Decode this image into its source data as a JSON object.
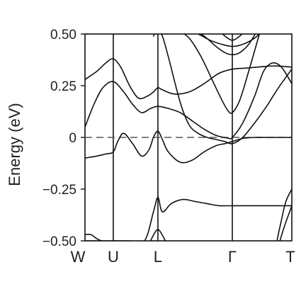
{
  "chart_data": {
    "type": "line",
    "title": "",
    "xlabel": "",
    "ylabel": "Energy (eV)",
    "ylim": [
      -0.5,
      0.5
    ],
    "yticks": [
      {
        "value": 0.5,
        "label": "0.50"
      },
      {
        "value": 0.25,
        "label": "0.25"
      },
      {
        "value": 0,
        "label": "0"
      },
      {
        "value": -0.25,
        "label": "−0.25"
      },
      {
        "value": -0.5,
        "label": "−0.50"
      }
    ],
    "xlim": [
      0,
      6.95
    ],
    "kpoints": [
      {
        "label": "W",
        "x": 0
      },
      {
        "label": "U",
        "x": 0.95
      },
      {
        "label": "L",
        "x": 2.45
      },
      {
        "label": "Γ",
        "x": 4.95
      },
      {
        "label": "T",
        "x": 6.95
      }
    ],
    "vertical_lines_at_kpoints": true,
    "reference_line": {
      "y": 0,
      "style": "dashed"
    },
    "grid": false,
    "series": [
      {
        "x": [
          0,
          0.4,
          0.7,
          0.95,
          1.2,
          1.5,
          1.8,
          2.1,
          2.3,
          2.45,
          2.6,
          3.0,
          3.5,
          4.0,
          4.5,
          4.95,
          5.4,
          5.8,
          6.2,
          6.5,
          6.95
        ],
        "y": [
          0.28,
          0.32,
          0.36,
          0.38,
          0.34,
          0.25,
          0.19,
          0.2,
          0.22,
          0.24,
          0.23,
          0.21,
          0.22,
          0.26,
          0.31,
          0.33,
          0.335,
          0.34,
          0.345,
          0.345,
          0.34
        ]
      },
      {
        "x": [
          0,
          0.3,
          0.6,
          0.95,
          1.3,
          1.6,
          1.9,
          2.2,
          2.45,
          2.8,
          3.2,
          3.6,
          4.0,
          4.4,
          4.8,
          4.95,
          5.3,
          5.7,
          6.0,
          6.3,
          6.6,
          6.95
        ],
        "y": [
          0.05,
          0.16,
          0.24,
          0.27,
          0.22,
          0.16,
          0.12,
          0.14,
          0.15,
          0.14,
          0.12,
          0.08,
          0.04,
          0.01,
          -0.003,
          0.0,
          0.07,
          0.2,
          0.32,
          0.36,
          0.34,
          0.26
        ]
      },
      {
        "x": [
          0,
          0.4,
          0.7,
          0.95,
          1.1,
          1.3,
          1.6,
          1.9,
          2.15,
          2.3,
          2.45,
          2.6,
          2.8,
          3.2,
          3.6,
          4.0,
          4.4,
          4.7,
          4.95,
          5.3,
          5.7,
          6.1,
          6.5,
          6.95
        ],
        "y": [
          -0.1,
          -0.09,
          -0.08,
          -0.07,
          -0.02,
          0.02,
          -0.03,
          -0.09,
          -0.06,
          0.0,
          0.03,
          -0.01,
          -0.07,
          -0.12,
          -0.11,
          -0.07,
          -0.04,
          -0.03,
          -0.02,
          -0.005,
          0.0,
          0.0,
          0.0,
          0.0
        ]
      },
      {
        "x": [
          2.3,
          2.45,
          2.6,
          2.8,
          3.2,
          3.5,
          3.8,
          4.1,
          4.4,
          4.7,
          4.95,
          5.3,
          5.7,
          6.1,
          6.5,
          6.95
        ],
        "y": [
          0.49,
          0.52,
          0.49,
          0.39,
          0.17,
          0.06,
          0.02,
          0.0,
          -0.01,
          -0.02,
          -0.03,
          0.0,
          0.07,
          0.15,
          0.24,
          0.33
        ]
      },
      {
        "x": [
          3.1,
          3.5,
          3.9,
          4.3,
          4.6,
          4.8,
          4.95,
          5.2,
          5.5,
          5.9
        ],
        "y": [
          0.52,
          0.48,
          0.39,
          0.27,
          0.18,
          0.13,
          0.12,
          0.18,
          0.32,
          0.52
        ]
      },
      {
        "x": [
          3.6,
          4.0,
          4.4,
          4.7,
          4.95,
          5.2,
          5.5,
          5.8
        ],
        "y": [
          0.52,
          0.49,
          0.44,
          0.41,
          0.4,
          0.41,
          0.45,
          0.52
        ]
      },
      {
        "x": [
          3.4,
          3.8,
          4.2,
          4.6,
          4.95,
          5.3,
          5.7,
          6.0
        ],
        "y": [
          0.52,
          0.5,
          0.47,
          0.45,
          0.44,
          0.45,
          0.48,
          0.52
        ]
      },
      {
        "x": [
          4.5,
          4.7,
          4.95,
          5.2,
          5.4
        ],
        "y": [
          0.52,
          0.49,
          0.47,
          0.49,
          0.52
        ]
      },
      {
        "x": [
          0,
          0.5,
          1.0,
          1.5,
          2.0,
          2.3,
          2.45,
          2.6,
          2.9,
          3.3,
          3.7,
          4.1,
          4.5,
          4.95,
          5.5,
          6.0,
          6.5,
          6.95
        ],
        "y": [
          -0.5,
          -0.5,
          -0.5,
          -0.5,
          -0.5,
          -0.36,
          -0.29,
          -0.36,
          -0.32,
          -0.3,
          -0.31,
          -0.32,
          -0.33,
          -0.33,
          -0.33,
          -0.33,
          -0.33,
          -0.33
        ]
      },
      {
        "x": [
          2.2,
          2.35,
          2.45,
          2.55,
          2.7
        ],
        "y": [
          -0.5,
          -0.46,
          -0.445,
          -0.46,
          -0.5
        ]
      },
      {
        "x": [
          6.45,
          6.6,
          6.75,
          6.95
        ],
        "y": [
          -0.5,
          -0.4,
          -0.31,
          -0.25
        ]
      },
      {
        "x": [
          6.55,
          6.7,
          6.85,
          6.95
        ],
        "y": [
          -0.5,
          -0.43,
          -0.37,
          -0.33
        ]
      },
      {
        "x": [
          0,
          0.2,
          0.4,
          0.55
        ],
        "y": [
          -0.47,
          -0.47,
          -0.49,
          -0.5
        ]
      }
    ]
  }
}
